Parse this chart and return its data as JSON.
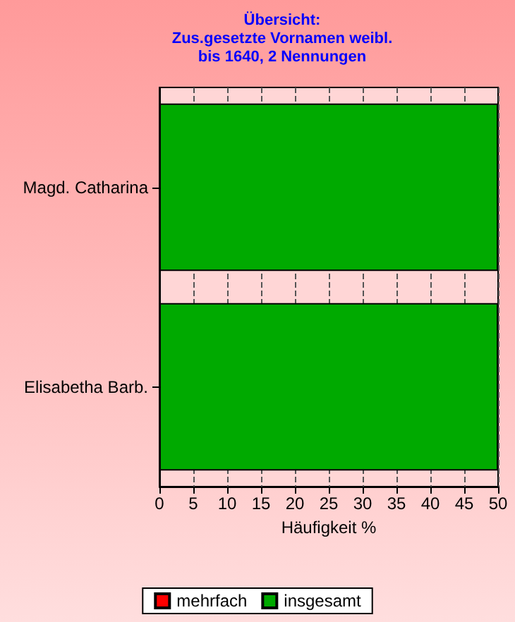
{
  "chart_data": {
    "type": "bar",
    "orientation": "horizontal",
    "title": "Übersicht:\nZus.gesetzte Vornamen weibl.\nbis 1640, 2 Nennungen",
    "xlabel": "Häufigkeit %",
    "categories": [
      "Magd. Catharina",
      "Elisabetha Barb."
    ],
    "series": [
      {
        "name": "mehrfach",
        "color": "#ff0000",
        "values": [
          null,
          null
        ]
      },
      {
        "name": "insgesamt",
        "color": "#00aa00",
        "values": [
          50,
          50
        ]
      }
    ],
    "xlim": [
      0,
      50
    ],
    "xticks": [
      0,
      5,
      10,
      15,
      20,
      25,
      30,
      35,
      40,
      45,
      50
    ],
    "grid": "x",
    "legend": "bottom"
  }
}
